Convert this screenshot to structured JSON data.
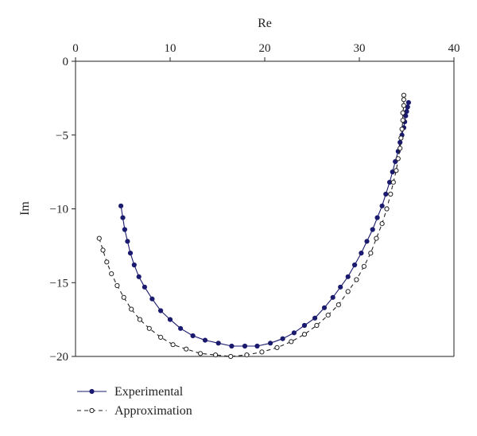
{
  "chart_data": {
    "type": "line",
    "title": "",
    "xlabel": "Re",
    "ylabel": "Im",
    "xlim": [
      0,
      40
    ],
    "ylim": [
      -20,
      0
    ],
    "x_ticks": [
      0,
      10,
      20,
      30,
      40
    ],
    "y_ticks": [
      0,
      -5,
      -10,
      -15,
      -20
    ],
    "x_tick_labels": [
      "0",
      "10",
      "20",
      "30",
      "40"
    ],
    "y_tick_labels": [
      "0",
      "−5",
      "−10",
      "−15",
      "−20"
    ],
    "x_axis_position": "top",
    "grid": false,
    "legend_position": "bottom-left",
    "colors": {
      "experimental": "#1a1a6e",
      "approximation": "#222222",
      "axis": "#222222"
    },
    "series": [
      {
        "name": "Experimental",
        "line_style": "solid",
        "marker": "filled-circle",
        "points": [
          [
            4.8,
            -9.8
          ],
          [
            5.0,
            -10.6
          ],
          [
            5.2,
            -11.4
          ],
          [
            5.5,
            -12.2
          ],
          [
            5.8,
            -13.0
          ],
          [
            6.2,
            -13.8
          ],
          [
            6.7,
            -14.6
          ],
          [
            7.3,
            -15.3
          ],
          [
            8.1,
            -16.1
          ],
          [
            9.0,
            -16.9
          ],
          [
            10.0,
            -17.5
          ],
          [
            11.1,
            -18.1
          ],
          [
            12.4,
            -18.6
          ],
          [
            13.7,
            -18.9
          ],
          [
            15.1,
            -19.1
          ],
          [
            16.5,
            -19.3
          ],
          [
            17.9,
            -19.3
          ],
          [
            19.2,
            -19.3
          ],
          [
            20.6,
            -19.1
          ],
          [
            21.9,
            -18.8
          ],
          [
            23.1,
            -18.4
          ],
          [
            24.2,
            -17.9
          ],
          [
            25.3,
            -17.4
          ],
          [
            26.3,
            -16.7
          ],
          [
            27.2,
            -16.0
          ],
          [
            28.0,
            -15.3
          ],
          [
            28.8,
            -14.6
          ],
          [
            29.5,
            -13.8
          ],
          [
            30.2,
            -13.0
          ],
          [
            30.8,
            -12.2
          ],
          [
            31.4,
            -11.4
          ],
          [
            31.9,
            -10.6
          ],
          [
            32.4,
            -9.8
          ],
          [
            32.8,
            -9.0
          ],
          [
            33.2,
            -8.2
          ],
          [
            33.5,
            -7.5
          ],
          [
            33.8,
            -6.8
          ],
          [
            34.1,
            -6.1
          ],
          [
            34.3,
            -5.5
          ],
          [
            34.5,
            -5.0
          ],
          [
            34.7,
            -4.5
          ],
          [
            34.8,
            -4.1
          ],
          [
            34.9,
            -3.7
          ],
          [
            35.0,
            -3.4
          ],
          [
            35.1,
            -3.1
          ],
          [
            35.2,
            -2.8
          ]
        ]
      },
      {
        "name": "Approximation",
        "line_style": "dashed",
        "marker": "open-circle",
        "points": [
          [
            2.5,
            -12.0
          ],
          [
            2.9,
            -12.8
          ],
          [
            3.3,
            -13.6
          ],
          [
            3.8,
            -14.4
          ],
          [
            4.4,
            -15.2
          ],
          [
            5.1,
            -16.0
          ],
          [
            5.9,
            -16.8
          ],
          [
            6.8,
            -17.5
          ],
          [
            7.8,
            -18.1
          ],
          [
            9.0,
            -18.7
          ],
          [
            10.3,
            -19.2
          ],
          [
            11.7,
            -19.5
          ],
          [
            13.2,
            -19.8
          ],
          [
            14.8,
            -19.9
          ],
          [
            16.4,
            -20.0
          ],
          [
            18.1,
            -19.9
          ],
          [
            19.7,
            -19.7
          ],
          [
            21.3,
            -19.4
          ],
          [
            22.8,
            -19.0
          ],
          [
            24.2,
            -18.5
          ],
          [
            25.5,
            -17.9
          ],
          [
            26.7,
            -17.2
          ],
          [
            27.8,
            -16.5
          ],
          [
            28.8,
            -15.6
          ],
          [
            29.7,
            -14.8
          ],
          [
            30.5,
            -13.9
          ],
          [
            31.2,
            -13.0
          ],
          [
            31.8,
            -12.0
          ],
          [
            32.4,
            -11.0
          ],
          [
            32.9,
            -10.0
          ],
          [
            33.3,
            -9.0
          ],
          [
            33.6,
            -8.2
          ],
          [
            33.9,
            -7.4
          ],
          [
            34.1,
            -6.6
          ],
          [
            34.3,
            -5.9
          ],
          [
            34.4,
            -5.2
          ],
          [
            34.5,
            -4.6
          ],
          [
            34.6,
            -4.0
          ],
          [
            34.6,
            -3.5
          ],
          [
            34.7,
            -3.0
          ],
          [
            34.7,
            -2.6
          ],
          [
            34.7,
            -2.3
          ]
        ]
      }
    ]
  }
}
